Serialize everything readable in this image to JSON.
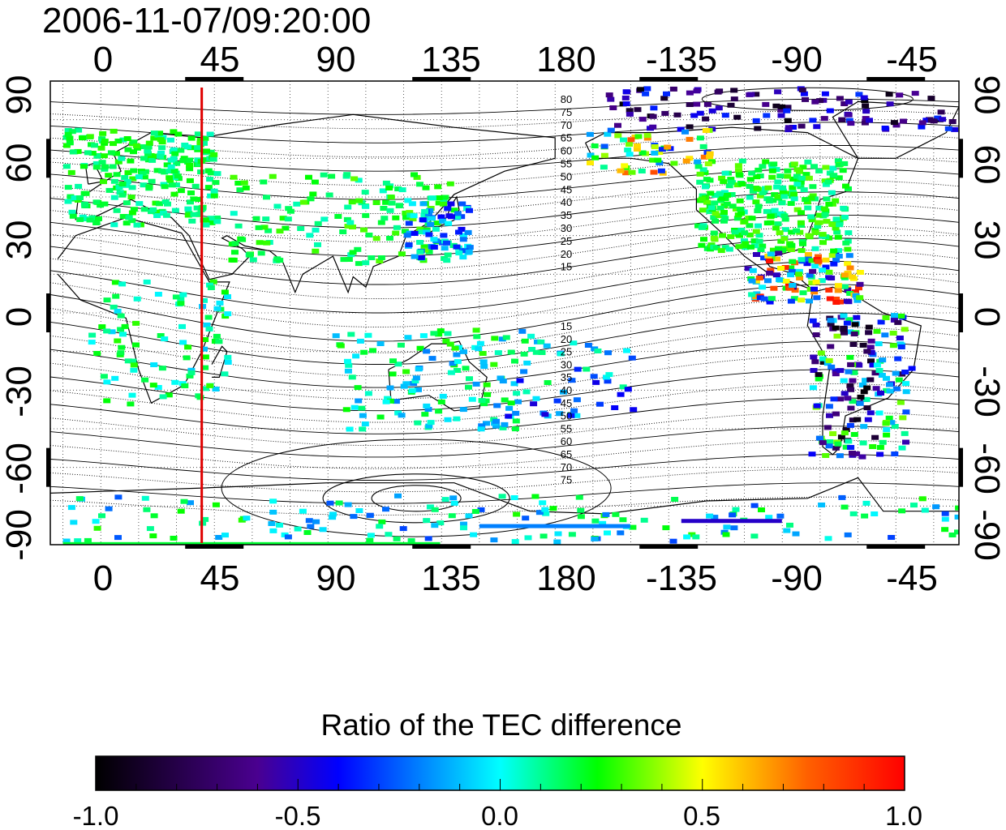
{
  "title": "2006-11-07/09:20:00",
  "map": {
    "x_tick_labels": [
      "0",
      "45",
      "90",
      "135",
      "180",
      "-135",
      "-90",
      "-45"
    ],
    "x_tick_longitudes": [
      0,
      45,
      90,
      135,
      180,
      225,
      270,
      315
    ],
    "y_tick_labels": [
      "90",
      "60",
      "30",
      "0",
      "-30",
      "-60",
      "-90"
    ],
    "y_tick_latitudes": [
      90,
      60,
      30,
      0,
      -30,
      -60,
      -90
    ],
    "lon_range": [
      -20,
      340
    ],
    "lat_range": [
      -90,
      90
    ],
    "marker_longitude": 40,
    "marker_color": "#e00000",
    "contours_north": [
      "80",
      "75",
      "70",
      "65",
      "60",
      "55",
      "50",
      "45",
      "40",
      "35",
      "30",
      "25",
      "20",
      "15"
    ],
    "contours_south": [
      "15",
      "20",
      "25",
      "30",
      "35",
      "40",
      "45",
      "50",
      "55",
      "60",
      "65",
      "70",
      "75"
    ]
  },
  "colorbar": {
    "title": "Ratio of the TEC difference",
    "tick_labels": [
      "-1.0",
      "-0.5",
      "0.0",
      "0.5",
      "1.0"
    ],
    "range": [
      -1.0,
      1.0
    ],
    "colors": [
      "#000000",
      "#400080",
      "#0000ff",
      "#00ffff",
      "#00ff00",
      "#ffff00",
      "#ff0000"
    ]
  }
}
